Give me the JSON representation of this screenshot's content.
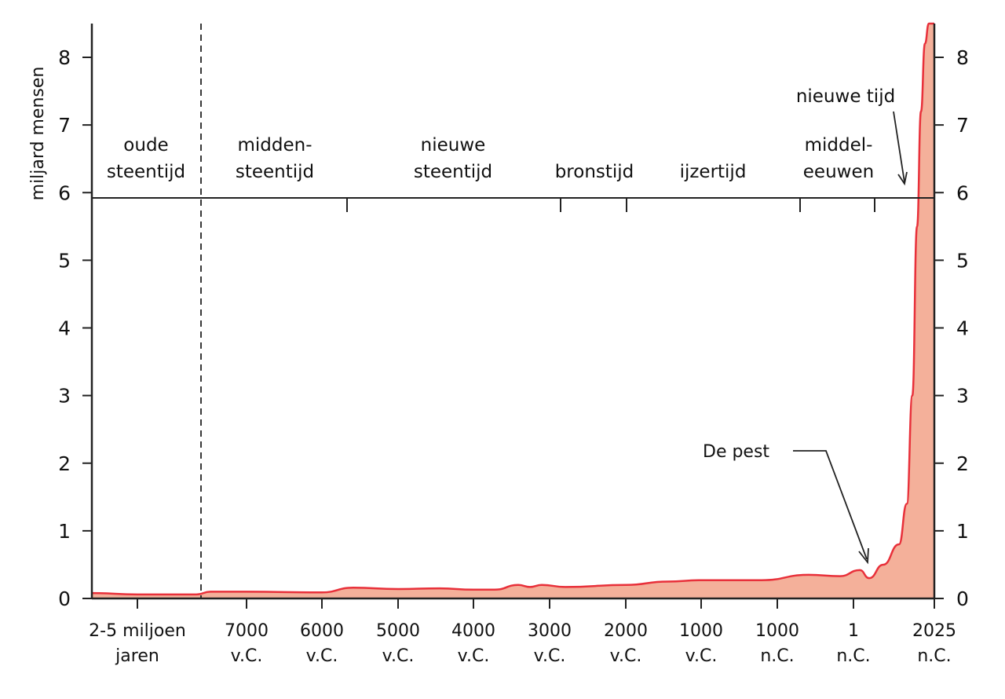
{
  "chart_data": {
    "type": "area",
    "ylabel": "miljard mensen",
    "ylim": [
      0,
      8.5
    ],
    "yticks": [
      0,
      1,
      2,
      3,
      4,
      5,
      6,
      7,
      8
    ],
    "fill_color": "#f4b09a",
    "line_color": "#e8303a",
    "axis_color": "#222222",
    "x_tick_labels": [
      {
        "line1": "2-5 miljoen",
        "line2": "jaren"
      },
      {
        "line1": "7000",
        "line2": "v.C."
      },
      {
        "line1": "6000",
        "line2": "v.C."
      },
      {
        "line1": "5000",
        "line2": "v.C."
      },
      {
        "line1": "4000",
        "line2": "v.C."
      },
      {
        "line1": "3000",
        "line2": "v.C."
      },
      {
        "line1": "2000",
        "line2": "v.C."
      },
      {
        "line1": "1000",
        "line2": "v.C."
      },
      {
        "line1": "1000",
        "line2": "n.C."
      },
      {
        "line1": "1",
        "line2": "n.C."
      },
      {
        "line1": "2025",
        "line2": "n.C."
      }
    ],
    "eras": [
      {
        "line1": "oude",
        "line2": "steentijd"
      },
      {
        "line1": "midden-",
        "line2": "steentijd"
      },
      {
        "line1": "nieuwe",
        "line2": "steentijd"
      },
      {
        "line1": "",
        "line2": "bronstijd"
      },
      {
        "line1": "",
        "line2": "ijzertijd"
      },
      {
        "line1": "middel-",
        "line2": "eeuwen"
      },
      {
        "line1": "nieuwe tijd",
        "line2": ""
      }
    ],
    "annotations": [
      {
        "text": "De pest"
      }
    ],
    "series": [
      {
        "x": [
          "2-5 miljoen jaren",
          "7000 v.C.",
          "6000 v.C.",
          "5000 v.C.",
          "4000 v.C.",
          "3000 v.C.",
          "2000 v.C.",
          "1000 v.C.",
          "1000 n.C.",
          "1 n.C.",
          "2025 n.C."
        ],
        "values": [
          0.05,
          0.1,
          0.1,
          0.14,
          0.13,
          0.19,
          0.19,
          0.26,
          0.27,
          0.4,
          8.5
        ]
      }
    ]
  }
}
